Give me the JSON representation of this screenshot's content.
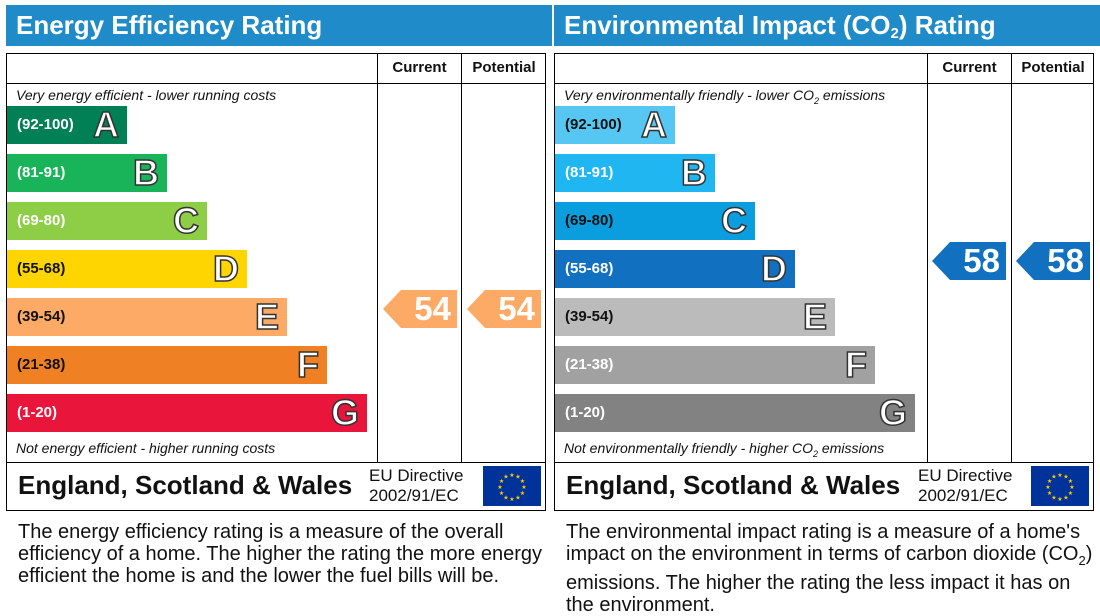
{
  "chart_data": [
    {
      "type": "bar",
      "title": "Energy Efficiency Rating",
      "columns": [
        "Current",
        "Potential"
      ],
      "top_note": "Very energy efficient - lower running costs",
      "bottom_note": "Not energy efficient - higher running costs",
      "categories": [
        "A",
        "B",
        "C",
        "D",
        "E",
        "F",
        "G"
      ],
      "ranges": [
        "(92-100)",
        "(81-91)",
        "(69-80)",
        "(55-68)",
        "(39-54)",
        "(21-38)",
        "(1-20)"
      ],
      "colors": [
        "#008054",
        "#19b459",
        "#8dce46",
        "#ffd500",
        "#fcaa65",
        "#ef8023",
        "#e9153b"
      ],
      "current": 54,
      "potential": 54,
      "current_band": "E",
      "potential_band": "E",
      "arrow_color": "#fcaa65",
      "footer_region": "England, Scotland & Wales",
      "eu_line1": "EU Directive",
      "eu_line2": "2002/91/EC"
    },
    {
      "type": "bar",
      "title_part1": "Environmental Impact (CO",
      "title_sub": "2",
      "title_part2": ") Rating",
      "columns": [
        "Current",
        "Potential"
      ],
      "top_note_part1": "Very environmentally friendly - lower CO",
      "top_note_sub": "2",
      "top_note_part2": " emissions",
      "bottom_note_part1": "Not environmentally friendly - higher CO",
      "bottom_note_sub": "2",
      "bottom_note_part2": " emissions",
      "categories": [
        "A",
        "B",
        "C",
        "D",
        "E",
        "F",
        "G"
      ],
      "ranges": [
        "(92-100)",
        "(81-91)",
        "(69-80)",
        "(55-68)",
        "(39-54)",
        "(21-38)",
        "(1-20)"
      ],
      "colors": [
        "#55c7f2",
        "#1fb6f2",
        "#0a9edf",
        "#1270c1",
        "#bbbbbb",
        "#a1a1a1",
        "#828282"
      ],
      "current": 58,
      "potential": 58,
      "current_band": "D",
      "potential_band": "D",
      "arrow_color": "#1270c1",
      "footer_region": "England, Scotland & Wales",
      "eu_line1": "EU Directive",
      "eu_line2": "2002/91/EC"
    }
  ],
  "descriptions": {
    "energy": "The energy efficiency rating is a measure of the overall efficiency of a home. The higher the rating the more energy efficient the home is and the lower the fuel bills will be.",
    "env_part1": "The environmental impact rating is a measure of a home's impact on the environment in terms of carbon dioxide (CO",
    "env_sub": "2",
    "env_part2": ") emissions. The higher the rating the less impact it has on the environment."
  }
}
